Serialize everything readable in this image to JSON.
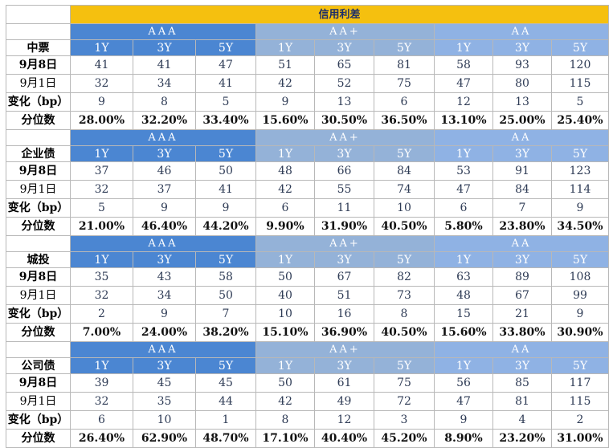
{
  "title": "信用利差",
  "ratings": [
    "AAA",
    "AA+",
    "AA"
  ],
  "tenors": [
    "1Y",
    "3Y",
    "5Y"
  ],
  "row_labels": [
    "9月8日",
    "9月1日",
    "变化（bp）",
    "分位数"
  ],
  "colors": {
    "header": "#f5c00f",
    "aaa": "#4b86d2",
    "aaa_plus": "#94b2d8",
    "aa": "#8fb2e4"
  },
  "blocks": [
    {
      "name": "中票",
      "rows": [
        [
          "41",
          "41",
          "47",
          "51",
          "65",
          "81",
          "58",
          "93",
          "120"
        ],
        [
          "32",
          "34",
          "41",
          "42",
          "52",
          "75",
          "47",
          "80",
          "115"
        ],
        [
          "9",
          "8",
          "5",
          "9",
          "13",
          "6",
          "12",
          "13",
          "5"
        ],
        [
          "28.00%",
          "32.20%",
          "33.40%",
          "15.60%",
          "30.50%",
          "36.50%",
          "13.10%",
          "25.00%",
          "25.40%"
        ]
      ]
    },
    {
      "name": "企业债",
      "rows": [
        [
          "37",
          "46",
          "50",
          "48",
          "66",
          "84",
          "53",
          "91",
          "123"
        ],
        [
          "32",
          "37",
          "41",
          "42",
          "55",
          "74",
          "47",
          "84",
          "114"
        ],
        [
          "5",
          "9",
          "9",
          "6",
          "11",
          "10",
          "6",
          "7",
          "9"
        ],
        [
          "21.00%",
          "46.40%",
          "44.20%",
          "9.90%",
          "31.90%",
          "40.50%",
          "5.80%",
          "23.80%",
          "34.50%"
        ]
      ]
    },
    {
      "name": "城投",
      "rows": [
        [
          "35",
          "43",
          "58",
          "50",
          "67",
          "82",
          "63",
          "89",
          "108"
        ],
        [
          "32",
          "34",
          "50",
          "40",
          "51",
          "73",
          "48",
          "67",
          "99"
        ],
        [
          "2",
          "9",
          "7",
          "10",
          "16",
          "8",
          "15",
          "21",
          "9"
        ],
        [
          "7.00%",
          "24.00%",
          "38.20%",
          "15.10%",
          "36.90%",
          "40.50%",
          "15.60%",
          "33.80%",
          "30.90%"
        ]
      ]
    },
    {
      "name": "公司债",
      "rows": [
        [
          "39",
          "45",
          "45",
          "50",
          "61",
          "75",
          "56",
          "85",
          "117"
        ],
        [
          "32",
          "35",
          "44",
          "42",
          "49",
          "72",
          "47",
          "81",
          "115"
        ],
        [
          "6",
          "10",
          "1",
          "8",
          "12",
          "3",
          "9",
          "4",
          "2"
        ],
        [
          "26.40%",
          "62.90%",
          "48.70%",
          "17.10%",
          "40.40%",
          "45.20%",
          "8.90%",
          "23.20%",
          "31.00%"
        ]
      ]
    }
  ]
}
